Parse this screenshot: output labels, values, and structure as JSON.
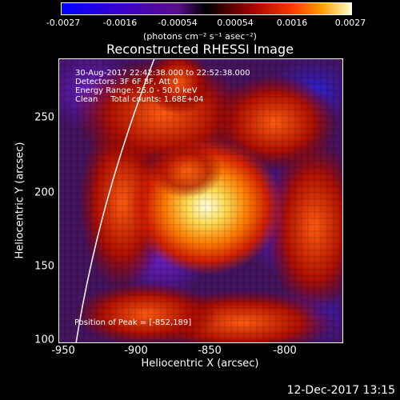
{
  "colorbar": {
    "ticks": [
      "-0.0027",
      "-0.0016",
      "-0.00054",
      "0.00054",
      "0.0016",
      "0.0027"
    ],
    "units": "(photons cm⁻² s⁻¹ asec⁻²)"
  },
  "title": "Reconstructed RHESSI Image",
  "info": {
    "time": "30-Aug-2017 22:42:38.000 to 22:52:38.000",
    "detectors": "Detectors: 3F 6F 8F, Att 0",
    "energy": "Energy Range: 25.0 - 50.0 keV",
    "clean": "Clean     Total counts: 1.68E+04",
    "peak": "Position of Peak = [-852,189]"
  },
  "axes": {
    "x_title": "Heliocentric X (arcsec)",
    "y_title": "Heliocentric Y (arcsec)",
    "x_ticks": [
      "-950",
      "-900",
      "-850",
      "-800"
    ],
    "y_ticks": [
      "250",
      "200",
      "150",
      "100"
    ]
  },
  "timestamp": "12-Dec-2017 13:15"
}
